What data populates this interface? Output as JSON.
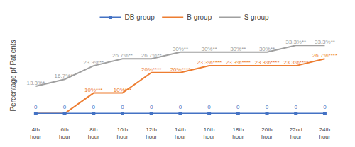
{
  "chart_data": {
    "type": "line",
    "categories": [
      "4th\nhour",
      "6th\nhour",
      "8th\nhour",
      "10th\nhour",
      "12th\nhour",
      "14th\nhour",
      "16th\nhour",
      "18th\nhour",
      "20th\nhour",
      "22nd\nhour",
      "24th\nhour"
    ],
    "series": [
      {
        "name": "S group",
        "color": "#a0a0a0",
        "values": [
          13.3,
          16.7,
          23.3,
          26.7,
          26.7,
          30,
          30,
          30,
          30,
          33.3,
          33.3
        ],
        "value_labels": [
          "13.3%*",
          "16.7%**",
          "23.3%**",
          "26.7%**",
          "26.7%**",
          "30%**",
          "30%**",
          "30%**",
          "30%**",
          "33.3%**",
          "33.3%**"
        ]
      },
      {
        "name": "B group",
        "color": "#ed7d31",
        "values": [
          0,
          0,
          10,
          10,
          20,
          20,
          23.3,
          23.3,
          23.3,
          23.3,
          26.7
        ],
        "value_labels": [
          null,
          null,
          "10%***",
          "10%***",
          "20%****",
          "20%****",
          "23.3%****",
          "23.3%****",
          "23.3%****",
          "23.3%****",
          "26.7%****"
        ]
      },
      {
        "name": "DB group",
        "color": "#4472c4",
        "marker": "square",
        "values": [
          0,
          0,
          0,
          0,
          0,
          0,
          0,
          0,
          0,
          0,
          0
        ],
        "value_labels": [
          "0",
          "0",
          "0",
          "0",
          "0",
          "0",
          "0",
          "0",
          "0",
          "0",
          "0"
        ]
      }
    ],
    "ylabel": "Percentage pf Patients",
    "ylim": [
      -5,
      42
    ],
    "tick_labels": "x",
    "grid": false,
    "legend": "top",
    "data_labels": true
  }
}
